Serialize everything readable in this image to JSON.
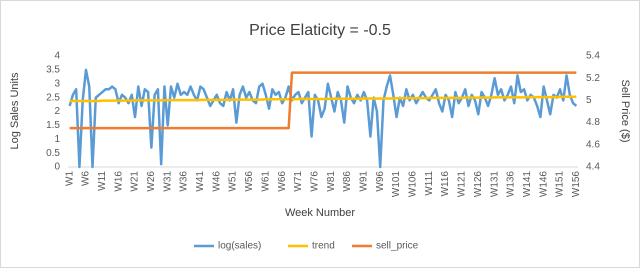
{
  "chart_data": {
    "type": "line",
    "title": "Price Elaticity = -0.5",
    "x_label": "Week Number",
    "y_label": "Log Sales Units",
    "y2_label": "Sell Price ($)",
    "categories": [
      "W1",
      null,
      null,
      null,
      null,
      "W6",
      null,
      null,
      null,
      null,
      "W11",
      null,
      null,
      null,
      null,
      "W16",
      null,
      null,
      null,
      null,
      "W21",
      null,
      null,
      null,
      null,
      "W26",
      null,
      null,
      null,
      null,
      "W31",
      null,
      null,
      null,
      null,
      "W36",
      null,
      null,
      null,
      null,
      "W41",
      null,
      null,
      null,
      null,
      "W46",
      null,
      null,
      null,
      null,
      "W51",
      null,
      null,
      null,
      null,
      "W56",
      null,
      null,
      null,
      null,
      "W61",
      null,
      null,
      null,
      null,
      "W66",
      null,
      null,
      null,
      null,
      "W71",
      null,
      null,
      null,
      null,
      "W76",
      null,
      null,
      null,
      null,
      "W81",
      null,
      null,
      null,
      null,
      "W86",
      null,
      null,
      null,
      null,
      "W91",
      null,
      null,
      null,
      null,
      "W96",
      null,
      null,
      null,
      null,
      "W101",
      null,
      null,
      null,
      null,
      "W106",
      null,
      null,
      null,
      null,
      "W111",
      null,
      null,
      null,
      null,
      "W116",
      null,
      null,
      null,
      null,
      "W121",
      null,
      null,
      null,
      null,
      "W126",
      null,
      null,
      null,
      null,
      "W131",
      null,
      null,
      null,
      null,
      "W136",
      null,
      null,
      null,
      null,
      "W141",
      null,
      null,
      null,
      null,
      "W146",
      null,
      null,
      null,
      null,
      "W151",
      null,
      null,
      null,
      null,
      "W156"
    ],
    "series": [
      {
        "name": "log(sales)",
        "color": "#5b9bd5",
        "axis": "y",
        "values": [
          2.2,
          2.6,
          2.8,
          0,
          2.4,
          3.5,
          2.9,
          0,
          2.5,
          2.6,
          2.7,
          2.8,
          2.8,
          2.9,
          2.8,
          2.3,
          2.6,
          2.5,
          2.3,
          2.6,
          1.8,
          2.9,
          2.2,
          2.8,
          2.7,
          0.7,
          2.6,
          2.8,
          0.1,
          2.9,
          1.5,
          2.9,
          2.5,
          3.0,
          2.6,
          2.7,
          2.6,
          2.9,
          2.6,
          2.4,
          2.9,
          2.8,
          2.5,
          2.2,
          2.4,
          2.6,
          2.3,
          2.2,
          2.7,
          2.4,
          2.8,
          1.6,
          2.6,
          2.9,
          2.5,
          2.7,
          2.4,
          2.3,
          2.9,
          3.0,
          2.6,
          2.1,
          2.8,
          2.6,
          2.7,
          2.3,
          2.5,
          2.9,
          2.4,
          2.6,
          2.7,
          2.3,
          2.5,
          2.7,
          1.1,
          2.6,
          2.4,
          1.8,
          2.1,
          3.0,
          2.5,
          2.0,
          2.7,
          2.4,
          1.6,
          2.9,
          2.5,
          2.3,
          2.6,
          2.4,
          2.7,
          2.4,
          1.1,
          2.5,
          2.0,
          0,
          2.4,
          2.9,
          3.3,
          2.6,
          1.8,
          2.5,
          2.2,
          2.8,
          2.4,
          2.6,
          2.3,
          2.5,
          2.7,
          2.5,
          2.4,
          2.6,
          2.8,
          2.3,
          2.0,
          2.6,
          2.4,
          1.8,
          2.7,
          2.3,
          2.5,
          2.8,
          2.2,
          2.6,
          2.4,
          1.9,
          2.7,
          2.5,
          2.2,
          2.6,
          3.2,
          2.6,
          2.8,
          2.4,
          2.6,
          2.9,
          2.3,
          3.3,
          2.7,
          2.8,
          2.4,
          2.6,
          2.5,
          2.2,
          1.8,
          2.9,
          2.4,
          1.9,
          2.6,
          2.5,
          2.8,
          2.4,
          3.3,
          2.6,
          2.3,
          2.2
        ]
      },
      {
        "name": "trend",
        "color": "#ffc000",
        "axis": "y",
        "values": [
          2.38,
          2.38,
          2.38,
          2.38,
          2.38,
          2.38,
          2.38,
          2.38,
          2.38,
          2.38,
          2.39,
          2.39,
          2.39,
          2.39,
          2.39,
          2.39,
          2.39,
          2.39,
          2.39,
          2.39,
          2.4,
          2.4,
          2.4,
          2.4,
          2.4,
          2.4,
          2.4,
          2.4,
          2.4,
          2.4,
          2.41,
          2.41,
          2.41,
          2.41,
          2.41,
          2.41,
          2.41,
          2.41,
          2.41,
          2.41,
          2.42,
          2.42,
          2.42,
          2.42,
          2.42,
          2.42,
          2.42,
          2.42,
          2.42,
          2.42,
          2.43,
          2.43,
          2.43,
          2.43,
          2.43,
          2.43,
          2.43,
          2.43,
          2.43,
          2.43,
          2.44,
          2.44,
          2.44,
          2.44,
          2.44,
          2.44,
          2.44,
          2.44,
          2.44,
          2.44,
          2.45,
          2.45,
          2.45,
          2.45,
          2.45,
          2.45,
          2.45,
          2.45,
          2.45,
          2.45,
          2.46,
          2.46,
          2.46,
          2.46,
          2.46,
          2.46,
          2.46,
          2.46,
          2.46,
          2.46,
          2.47,
          2.47,
          2.47,
          2.47,
          2.47,
          2.47,
          2.47,
          2.47,
          2.47,
          2.47,
          2.48,
          2.48,
          2.48,
          2.48,
          2.48,
          2.48,
          2.48,
          2.48,
          2.48,
          2.48,
          2.49,
          2.49,
          2.49,
          2.49,
          2.49,
          2.49,
          2.49,
          2.49,
          2.49,
          2.49,
          2.5,
          2.5,
          2.5,
          2.5,
          2.5,
          2.5,
          2.5,
          2.5,
          2.5,
          2.5,
          2.51,
          2.51,
          2.51,
          2.51,
          2.51,
          2.51,
          2.51,
          2.51,
          2.51,
          2.51,
          2.52,
          2.52,
          2.52,
          2.52,
          2.52,
          2.52,
          2.52,
          2.52,
          2.52,
          2.52,
          2.53,
          2.53,
          2.53,
          2.53,
          2.53,
          2.53
        ]
      },
      {
        "name": "sell_price",
        "color": "#ed7d31",
        "axis": "y2",
        "values": [
          4.75,
          4.75,
          4.75,
          4.75,
          4.75,
          4.75,
          4.75,
          4.75,
          4.75,
          4.75,
          4.75,
          4.75,
          4.75,
          4.75,
          4.75,
          4.75,
          4.75,
          4.75,
          4.75,
          4.75,
          4.75,
          4.75,
          4.75,
          4.75,
          4.75,
          4.75,
          4.75,
          4.75,
          4.75,
          4.75,
          4.75,
          4.75,
          4.75,
          4.75,
          4.75,
          4.75,
          4.75,
          4.75,
          4.75,
          4.75,
          4.75,
          4.75,
          4.75,
          4.75,
          4.75,
          4.75,
          4.75,
          4.75,
          4.75,
          4.75,
          4.75,
          4.75,
          4.75,
          4.75,
          4.75,
          4.75,
          4.75,
          4.75,
          4.75,
          4.75,
          4.75,
          4.75,
          4.75,
          4.75,
          4.75,
          4.75,
          4.75,
          4.75,
          5.25,
          5.25,
          5.25,
          5.25,
          5.25,
          5.25,
          5.25,
          5.25,
          5.25,
          5.25,
          5.25,
          5.25,
          5.25,
          5.25,
          5.25,
          5.25,
          5.25,
          5.25,
          5.25,
          5.25,
          5.25,
          5.25,
          5.25,
          5.25,
          5.25,
          5.25,
          5.25,
          5.25,
          5.25,
          5.25,
          5.25,
          5.25,
          5.25,
          5.25,
          5.25,
          5.25,
          5.25,
          5.25,
          5.25,
          5.25,
          5.25,
          5.25,
          5.25,
          5.25,
          5.25,
          5.25,
          5.25,
          5.25,
          5.25,
          5.25,
          5.25,
          5.25,
          5.25,
          5.25,
          5.25,
          5.25,
          5.25,
          5.25,
          5.25,
          5.25,
          5.25,
          5.25,
          5.25,
          5.25,
          5.25,
          5.25,
          5.25,
          5.25,
          5.25,
          5.25,
          5.25,
          5.25,
          5.25,
          5.25,
          5.25,
          5.25,
          5.25,
          5.25,
          5.25,
          5.25,
          5.25,
          5.25,
          5.25,
          5.25,
          5.25,
          5.25,
          5.25,
          5.25
        ]
      }
    ],
    "ylim": [
      0,
      4
    ],
    "yticks": [
      0,
      0.5,
      1,
      1.5,
      2,
      2.5,
      3,
      3.5,
      4
    ],
    "y2lim": [
      4.4,
      5.4
    ],
    "y2ticks": [
      4.4,
      4.6,
      4.8,
      5,
      5.2,
      5.4
    ],
    "grid": false,
    "legend": "bottom"
  }
}
